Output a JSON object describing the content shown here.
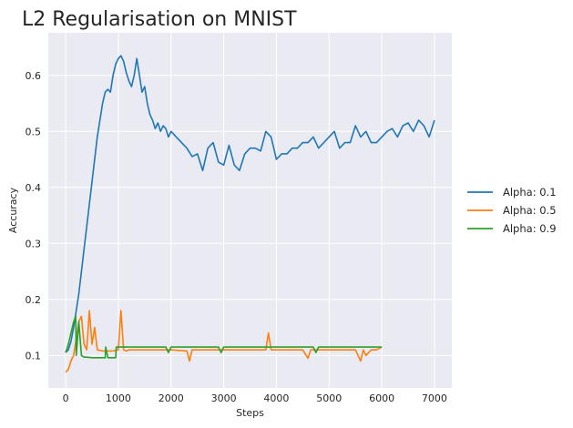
{
  "chart_data": {
    "type": "line",
    "title": "L2 Regularisation on MNIST",
    "xlabel": "Steps",
    "ylabel": "Accuracy",
    "xlim": [
      -330,
      7330
    ],
    "ylim": [
      0.042,
      0.676
    ],
    "xticks": [
      0,
      1000,
      2000,
      3000,
      4000,
      5000,
      6000,
      7000
    ],
    "yticks": [
      0.1,
      0.2,
      0.3,
      0.4,
      0.5,
      0.6
    ],
    "grid": true,
    "legend_position": "outside-right",
    "series": [
      {
        "name": "Alpha: 0.1",
        "color": "#1f77b4",
        "x": [
          0,
          50,
          100,
          150,
          200,
          250,
          300,
          350,
          400,
          450,
          500,
          550,
          600,
          650,
          700,
          750,
          800,
          850,
          900,
          950,
          1000,
          1050,
          1100,
          1150,
          1200,
          1250,
          1300,
          1350,
          1400,
          1450,
          1500,
          1550,
          1600,
          1650,
          1700,
          1750,
          1800,
          1850,
          1900,
          1950,
          2000,
          2100,
          2200,
          2300,
          2400,
          2500,
          2600,
          2700,
          2800,
          2900,
          3000,
          3100,
          3200,
          3300,
          3400,
          3500,
          3600,
          3700,
          3800,
          3900,
          4000,
          4100,
          4200,
          4300,
          4400,
          4500,
          4600,
          4700,
          4800,
          4900,
          5000,
          5100,
          5200,
          5300,
          5400,
          5500,
          5600,
          5700,
          5800,
          5900,
          6000,
          6100,
          6200,
          6300,
          6400,
          6500,
          6600,
          6700,
          6800,
          6900,
          7000
        ],
        "y": [
          0.105,
          0.11,
          0.125,
          0.15,
          0.18,
          0.21,
          0.25,
          0.29,
          0.33,
          0.37,
          0.41,
          0.45,
          0.49,
          0.52,
          0.55,
          0.57,
          0.575,
          0.57,
          0.6,
          0.62,
          0.63,
          0.635,
          0.625,
          0.605,
          0.59,
          0.58,
          0.6,
          0.63,
          0.6,
          0.57,
          0.58,
          0.55,
          0.53,
          0.52,
          0.505,
          0.515,
          0.5,
          0.51,
          0.505,
          0.49,
          0.5,
          0.49,
          0.48,
          0.47,
          0.455,
          0.46,
          0.43,
          0.47,
          0.48,
          0.445,
          0.44,
          0.475,
          0.44,
          0.43,
          0.46,
          0.47,
          0.47,
          0.465,
          0.5,
          0.49,
          0.45,
          0.46,
          0.46,
          0.47,
          0.47,
          0.48,
          0.48,
          0.49,
          0.47,
          0.48,
          0.49,
          0.5,
          0.47,
          0.48,
          0.48,
          0.51,
          0.49,
          0.5,
          0.48,
          0.48,
          0.49,
          0.5,
          0.505,
          0.49,
          0.51,
          0.515,
          0.5,
          0.52,
          0.51,
          0.49,
          0.52
        ]
      },
      {
        "name": "Alpha: 0.5",
        "color": "#ff7f0e",
        "x": [
          0,
          50,
          100,
          150,
          200,
          250,
          300,
          350,
          400,
          450,
          500,
          550,
          600,
          700,
          800,
          900,
          1000,
          1050,
          1100,
          1150,
          1200,
          1500,
          2000,
          2300,
          2350,
          2400,
          2500,
          3000,
          3300,
          3500,
          3800,
          3850,
          3900,
          4500,
          4600,
          4650,
          4700,
          5000,
          5500,
          5600,
          5650,
          5700,
          5800,
          5900,
          6000
        ],
        "y": [
          0.07,
          0.075,
          0.09,
          0.1,
          0.13,
          0.16,
          0.17,
          0.12,
          0.11,
          0.18,
          0.12,
          0.15,
          0.11,
          0.108,
          0.108,
          0.108,
          0.11,
          0.18,
          0.11,
          0.108,
          0.11,
          0.11,
          0.11,
          0.108,
          0.09,
          0.11,
          0.11,
          0.11,
          0.11,
          0.11,
          0.11,
          0.14,
          0.11,
          0.11,
          0.095,
          0.11,
          0.11,
          0.11,
          0.11,
          0.09,
          0.11,
          0.1,
          0.11,
          0.11,
          0.115
        ]
      },
      {
        "name": "Alpha: 0.9",
        "color": "#2ca02c",
        "x": [
          0,
          50,
          100,
          150,
          190,
          200,
          250,
          300,
          350,
          400,
          500,
          600,
          700,
          750,
          760,
          800,
          900,
          950,
          960,
          1000,
          1500,
          1900,
          1950,
          2000,
          2500,
          2900,
          2950,
          3000,
          3500,
          4000,
          4500,
          4700,
          4750,
          4800,
          5000,
          5500,
          6000
        ],
        "y": [
          0.105,
          0.12,
          0.14,
          0.16,
          0.17,
          0.1,
          0.16,
          0.1,
          0.097,
          0.097,
          0.096,
          0.096,
          0.096,
          0.096,
          0.115,
          0.096,
          0.096,
          0.096,
          0.115,
          0.115,
          0.115,
          0.115,
          0.105,
          0.115,
          0.115,
          0.115,
          0.105,
          0.115,
          0.115,
          0.115,
          0.115,
          0.115,
          0.105,
          0.115,
          0.115,
          0.115,
          0.115
        ]
      }
    ]
  }
}
